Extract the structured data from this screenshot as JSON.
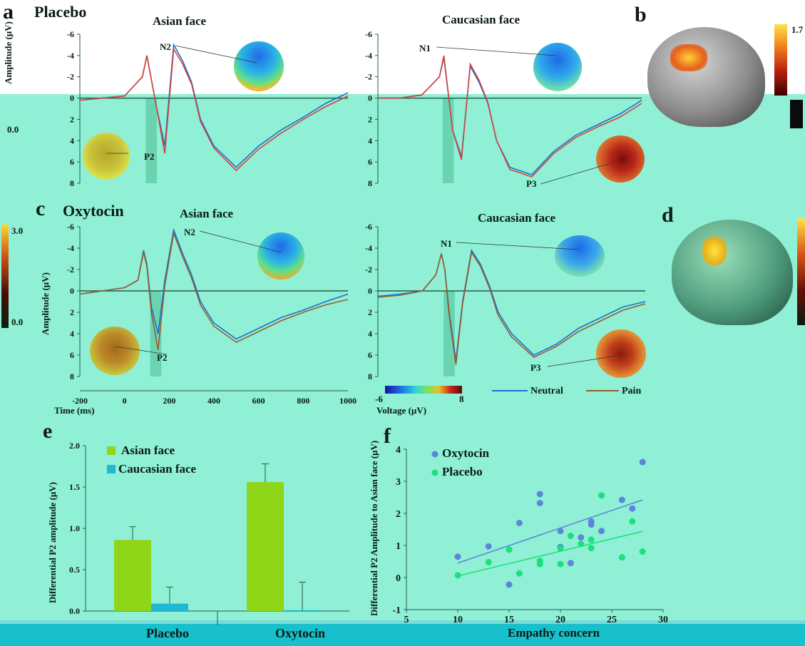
{
  "panels": {
    "a": {
      "letter": "a",
      "condition": "Placebo"
    },
    "b": {
      "letter": "b",
      "colorbar_max": "1.7",
      "colorbar_mid": "0.0"
    },
    "c": {
      "letter": "c",
      "condition": "Oxytocin"
    },
    "d": {
      "letter": "d",
      "colorbar_max": "3.0",
      "colorbar_min": "0.0"
    },
    "e": {
      "letter": "e"
    },
    "f": {
      "letter": "f"
    }
  },
  "erp": {
    "asian_title": "Asian face",
    "caucasian_title": "Caucasian face",
    "ylabel": "Amplitude (μV)",
    "xlabel": "Time (ms)",
    "components": {
      "n2": "N2",
      "n1": "N1",
      "p2": "P2",
      "p3": "P3"
    },
    "legend": {
      "neutral": "Neutral",
      "pain": "Pain"
    },
    "voltage_label": "Voltage (μV)",
    "voltage_min": "-6",
    "voltage_max": "8",
    "colors": {
      "neutral": "#1e6fc8",
      "pain": "#9a5a2c",
      "placebo_pain": "#d9423a"
    }
  },
  "chart_data": [
    {
      "type": "line",
      "panel": "a-asian",
      "title": "Asian face",
      "ylabel": "Amplitude (μV)",
      "y_inverted": true,
      "ylim": [
        -6,
        8
      ],
      "yticks": [
        "-6",
        "-4",
        "-2",
        "0",
        "2",
        "4",
        "6",
        "8"
      ],
      "x": [
        -200,
        -100,
        0,
        80,
        100,
        140,
        180,
        220,
        260,
        300,
        340,
        400,
        500,
        600,
        700,
        800,
        900,
        1000
      ],
      "series": [
        {
          "name": "Neutral",
          "values": [
            0.2,
            0,
            -0.2,
            -2,
            -4,
            0.5,
            4.5,
            -5,
            -3.5,
            -1.5,
            2,
            4.5,
            6.5,
            4.5,
            3,
            1.8,
            0.5,
            -0.5
          ]
        },
        {
          "name": "Pain",
          "values": [
            0.2,
            0,
            -0.2,
            -2,
            -4,
            0.5,
            5.2,
            -4.6,
            -3.2,
            -1.3,
            2.2,
            4.7,
            6.8,
            4.8,
            3.3,
            2,
            0.8,
            -0.2
          ]
        }
      ]
    },
    {
      "type": "line",
      "panel": "a-caucasian",
      "title": "Caucasian face",
      "ylim": [
        -6,
        8
      ],
      "yticks": [
        "-6",
        "-4",
        "-2",
        "0",
        "2",
        "4",
        "6",
        "8"
      ],
      "x": [
        -200,
        -100,
        0,
        80,
        100,
        140,
        180,
        220,
        260,
        300,
        340,
        400,
        500,
        600,
        700,
        800,
        900,
        1000
      ],
      "series": [
        {
          "name": "Neutral",
          "values": [
            0,
            0,
            -0.3,
            -2,
            -3.8,
            3,
            5.5,
            -3,
            -1.5,
            0.5,
            4,
            6.5,
            7.2,
            5,
            3.5,
            2.5,
            1.5,
            0.2
          ]
        },
        {
          "name": "Pain",
          "values": [
            0,
            0,
            -0.3,
            -2,
            -4,
            3,
            5.8,
            -3.2,
            -1.7,
            0.4,
            4,
            6.7,
            7.4,
            5.2,
            3.7,
            2.7,
            1.8,
            0.5
          ]
        }
      ]
    },
    {
      "type": "line",
      "panel": "c-asian",
      "title": "Asian face",
      "xlabel": "Time (ms)",
      "ylabel": "Amplitude (μV)",
      "ylim": [
        -6,
        8
      ],
      "yticks": [
        "-6",
        "-4",
        "-2",
        "0",
        "2",
        "4",
        "6",
        "8"
      ],
      "xticks": [
        "-200",
        "0",
        "200",
        "400",
        "600",
        "800",
        "1000"
      ],
      "x": [
        -200,
        -100,
        0,
        60,
        85,
        100,
        120,
        150,
        180,
        220,
        260,
        300,
        340,
        400,
        500,
        600,
        700,
        800,
        900,
        1000
      ],
      "series": [
        {
          "name": "Neutral",
          "values": [
            0.3,
            0,
            -0.3,
            -1,
            -3.8,
            -2.5,
            1.5,
            4,
            -1,
            -5.7,
            -3.5,
            -1.5,
            1,
            3,
            4.5,
            3.5,
            2.5,
            1.8,
            1,
            0.3
          ]
        },
        {
          "name": "Pain",
          "values": [
            0.3,
            0,
            -0.3,
            -1,
            -3.6,
            -2.3,
            2,
            5.5,
            -0.5,
            -5.4,
            -3.2,
            -1.2,
            1.3,
            3.3,
            4.8,
            3.8,
            2.8,
            2,
            1.3,
            0.8
          ]
        }
      ]
    },
    {
      "type": "line",
      "panel": "c-caucasian",
      "title": "Caucasian face",
      "ylim": [
        -6,
        8
      ],
      "yticks": [
        "-6",
        "-4",
        "-2",
        "0",
        "2",
        "4",
        "6",
        "8"
      ],
      "x": [
        -200,
        -100,
        0,
        60,
        85,
        100,
        120,
        150,
        180,
        220,
        260,
        300,
        340,
        400,
        500,
        600,
        700,
        800,
        900,
        1000
      ],
      "series": [
        {
          "name": "Neutral",
          "values": [
            0.5,
            0.3,
            0,
            -1.5,
            -3.5,
            -2,
            2,
            6.5,
            1,
            -3.8,
            -2.5,
            -0.5,
            2,
            4,
            6,
            5,
            3.5,
            2.5,
            1.5,
            1
          ]
        },
        {
          "name": "Pain",
          "values": [
            0.6,
            0.4,
            0,
            -1.5,
            -3.5,
            -2,
            2.3,
            6.9,
            1.2,
            -3.6,
            -2.3,
            -0.3,
            2.3,
            4.3,
            6.2,
            5.2,
            3.8,
            2.8,
            1.8,
            1.2
          ]
        }
      ]
    },
    {
      "type": "bar",
      "panel": "e",
      "ylabel": "Differential P2 amplitude (μV)",
      "categories": [
        "Placebo",
        "Oxytocin"
      ],
      "ylim": [
        0,
        2.0
      ],
      "yticks": [
        "0.0",
        "0.5",
        "1.0",
        "1.5",
        "2.0"
      ],
      "series": [
        {
          "name": "Asian face",
          "values": [
            0.86,
            1.56
          ],
          "errors": [
            0.16,
            0.22
          ],
          "color": "#8fd618"
        },
        {
          "name": "Caucasian face",
          "values": [
            0.09,
            0.01
          ],
          "errors": [
            0.2,
            0.34
          ],
          "color": "#1fb9d6"
        }
      ]
    },
    {
      "type": "scatter",
      "panel": "f",
      "xlabel": "Empathy concern",
      "ylabel": "Differential P2 Amplitude to Asian face (μV)",
      "xlim": [
        5,
        30
      ],
      "ylim": [
        -1,
        4
      ],
      "xticks": [
        "5",
        "10",
        "15",
        "20",
        "25",
        "30"
      ],
      "yticks": [
        "-1",
        "0",
        "1",
        "2",
        "3",
        "4"
      ],
      "series": [
        {
          "name": "Oxytocin",
          "color": "#5b86d9",
          "points": [
            [
              10,
              0.65
            ],
            [
              13,
              0.97
            ],
            [
              15,
              -0.22
            ],
            [
              16,
              1.7
            ],
            [
              18,
              2.6
            ],
            [
              18,
              2.32
            ],
            [
              20,
              1.45
            ],
            [
              20,
              0.95
            ],
            [
              21,
              0.45
            ],
            [
              22,
              1.25
            ],
            [
              23,
              1.75
            ],
            [
              23,
              1.65
            ],
            [
              24,
              1.45
            ],
            [
              26,
              2.42
            ],
            [
              27,
              2.15
            ],
            [
              28,
              3.6
            ]
          ],
          "fit": [
            [
              10,
              0.45
            ],
            [
              28,
              2.42
            ]
          ]
        },
        {
          "name": "Placebo",
          "color": "#1ee07a",
          "points": [
            [
              10,
              0.07
            ],
            [
              13,
              0.48
            ],
            [
              15,
              0.87
            ],
            [
              16,
              0.13
            ],
            [
              18,
              0.52
            ],
            [
              18,
              0.42
            ],
            [
              20,
              0.42
            ],
            [
              20,
              0.9
            ],
            [
              21,
              1.3
            ],
            [
              22,
              1.05
            ],
            [
              23,
              0.92
            ],
            [
              23,
              1.18
            ],
            [
              24,
              2.56
            ],
            [
              26,
              0.63
            ],
            [
              27,
              1.75
            ],
            [
              28,
              0.81
            ]
          ],
          "fit": [
            [
              10,
              0.05
            ],
            [
              28,
              1.44
            ]
          ]
        }
      ]
    }
  ]
}
